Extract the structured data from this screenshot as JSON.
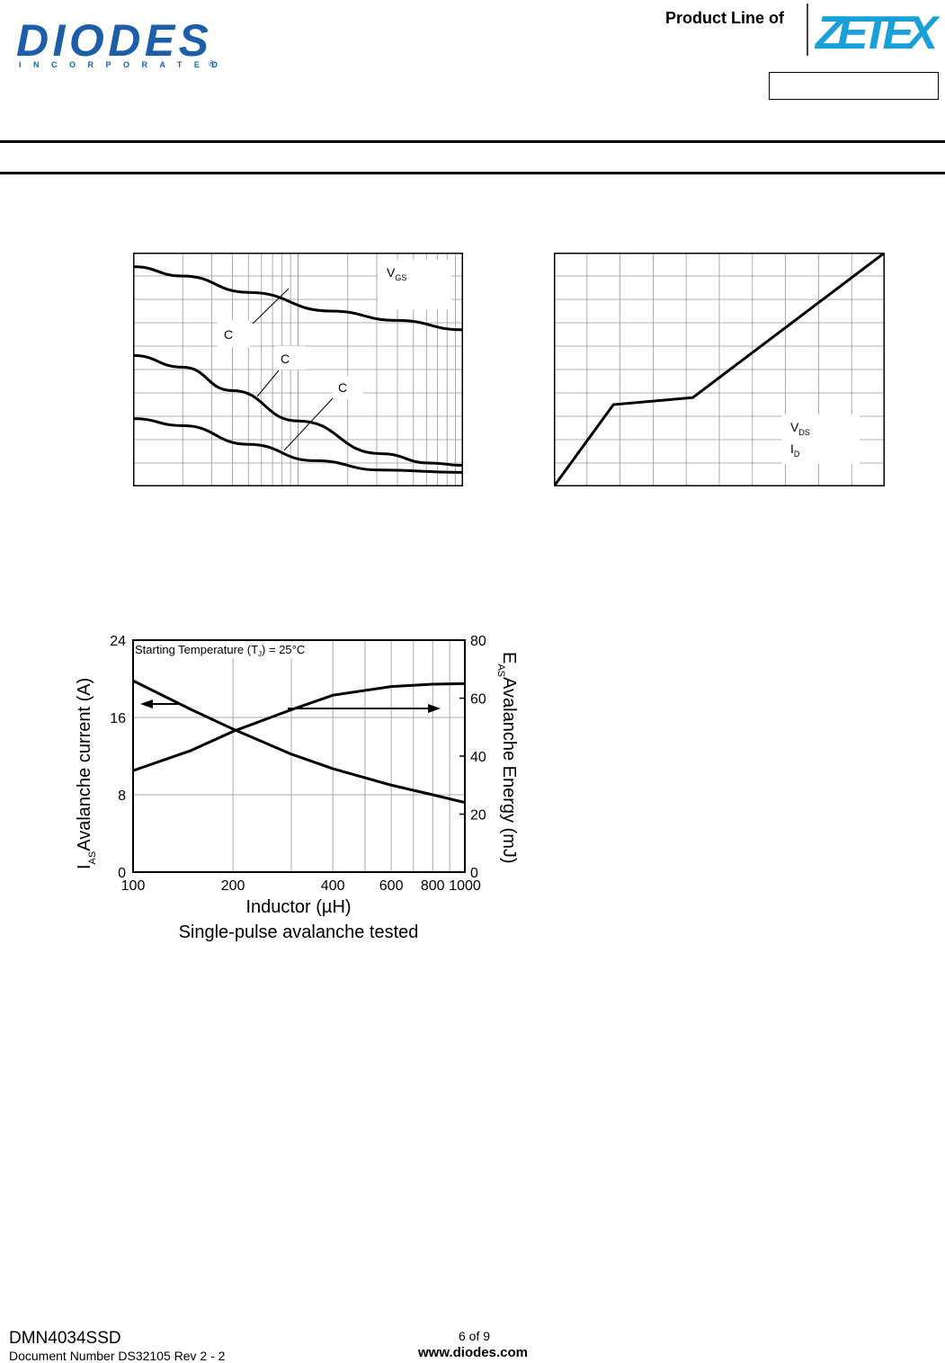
{
  "header": {
    "brand_name": "DIODES",
    "brand_subtitle": "INCORPORATED",
    "registered_mark": "®",
    "product_line_label": "Product Line of",
    "zetex_brand": "ZETEX"
  },
  "chart_data": [
    {
      "type": "line",
      "series": [
        {
          "label": "C",
          "points": [
            [
              0,
              0.94
            ],
            [
              0.15,
              0.9
            ],
            [
              0.35,
              0.83
            ],
            [
              0.6,
              0.75
            ],
            [
              0.8,
              0.71
            ],
            [
              1,
              0.67
            ]
          ]
        },
        {
          "label": "C",
          "points": [
            [
              0,
              0.56
            ],
            [
              0.15,
              0.51
            ],
            [
              0.3,
              0.41
            ],
            [
              0.5,
              0.28
            ],
            [
              0.75,
              0.14
            ],
            [
              0.9,
              0.1
            ],
            [
              1,
              0.09
            ]
          ]
        },
        {
          "label": "C",
          "points": [
            [
              0,
              0.29
            ],
            [
              0.15,
              0.26
            ],
            [
              0.35,
              0.18
            ],
            [
              0.55,
              0.11
            ],
            [
              0.75,
              0.07
            ],
            [
              1,
              0.06
            ]
          ]
        }
      ],
      "annotation": {
        "main": "V",
        "sub": "GS"
      },
      "grid": true
    },
    {
      "type": "line",
      "points": [
        [
          0,
          0
        ],
        [
          0.18,
          0.35
        ],
        [
          0.42,
          0.38
        ],
        [
          1,
          1
        ]
      ],
      "annotations": [
        {
          "main": "V",
          "sub": "DS"
        },
        {
          "main": "I",
          "sub": "D"
        }
      ],
      "grid": true
    },
    {
      "type": "line",
      "x_scale": "log",
      "xlabel": "Inductor (µH)",
      "caption": "Single-pulse avalanche tested",
      "annotation": "Starting Temperature (T",
      "annotation_sub": "J",
      "annotation_end": ") = 25°C",
      "y_left": {
        "label_main": "I",
        "label_sub": "AS",
        "label_rest": "Avalanche current (A)",
        "ticks": [
          0,
          8,
          16,
          24
        ],
        "range": [
          0,
          24
        ]
      },
      "y_right": {
        "label_main": "E",
        "label_sub": "AS",
        "label_rest": "Avalanche Energy (mJ)",
        "ticks": [
          0,
          20,
          40,
          60,
          80
        ],
        "range": [
          0,
          80
        ]
      },
      "x_ticks": [
        100,
        200,
        400,
        600,
        800,
        1000
      ],
      "x_range": [
        100,
        1000
      ],
      "series": [
        {
          "axis": "left",
          "points": [
            [
              100,
              19.8
            ],
            [
              150,
              16.8
            ],
            [
              200,
              14.8
            ],
            [
              300,
              12.2
            ],
            [
              400,
              10.7
            ],
            [
              600,
              9.0
            ],
            [
              800,
              8.0
            ],
            [
              1000,
              7.2
            ]
          ]
        },
        {
          "axis": "right",
          "points": [
            [
              100,
              35
            ],
            [
              150,
              42
            ],
            [
              200,
              48.5
            ],
            [
              300,
              56
            ],
            [
              400,
              61
            ],
            [
              600,
              64
            ],
            [
              800,
              64.8
            ],
            [
              1000,
              65
            ]
          ]
        }
      ],
      "grid": true
    }
  ],
  "footer": {
    "part_number": "DMN4034SSD",
    "document_number": "Document Number DS32105 Rev 2 - 2",
    "page": "6 of 9",
    "website": "www.diodes.com"
  }
}
